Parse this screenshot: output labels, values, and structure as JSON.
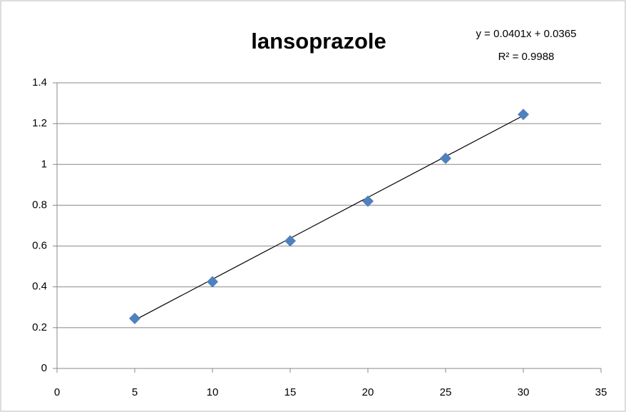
{
  "chart_data": {
    "type": "scatter",
    "title": "lansoprazole",
    "series": [
      {
        "color": "#4f81bd",
        "x": [
          5,
          10,
          15,
          20,
          25,
          30
        ],
        "values": [
          0.245,
          0.425,
          0.625,
          0.82,
          1.03,
          1.245
        ]
      }
    ],
    "trendline": {
      "slope": 0.0401,
      "intercept": 0.0365,
      "color": "#000000",
      "equation": "y = 0.0401x + 0.0365",
      "r_squared": "R² = 0.9988"
    },
    "xlim": [
      0,
      35
    ],
    "xticks": [
      0,
      5,
      10,
      15,
      20,
      25,
      30,
      35
    ],
    "ylim": [
      0,
      1.4
    ],
    "yticks": [
      0,
      0.2,
      0.4,
      0.6,
      0.8,
      1,
      1.2,
      1.4
    ],
    "grid": true
  }
}
